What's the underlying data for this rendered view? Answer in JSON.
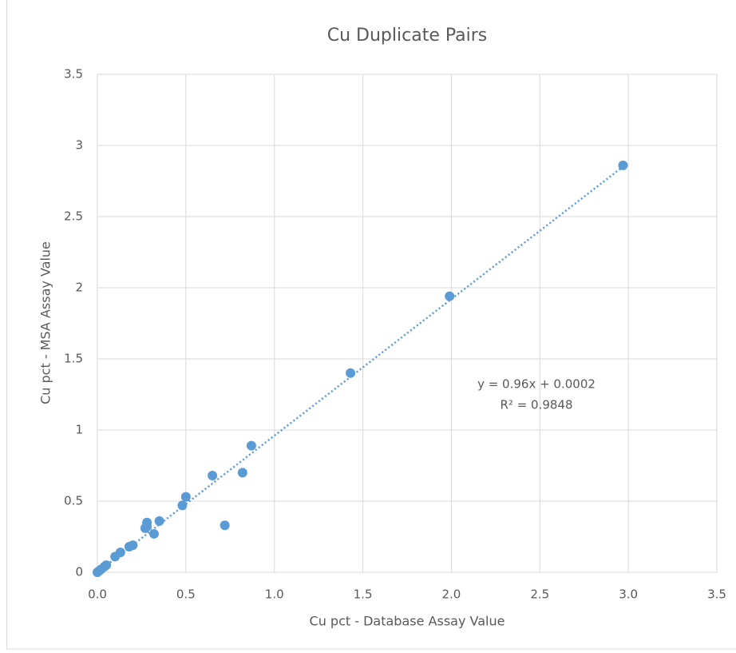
{
  "chart_data": {
    "type": "scatter",
    "title": "Cu Duplicate Pairs",
    "xlabel": "Cu pct - Database Assay Value",
    "ylabel": "Cu pct - MSA Assay Value",
    "series": [
      {
        "name": "Cu",
        "color": "#5b9bd5",
        "x": [
          2.97,
          1.99,
          1.43,
          0.87,
          0.82,
          0.65,
          0.72,
          0.5,
          0.48,
          0.35,
          0.32,
          0.28,
          0.27,
          0.28,
          0.2,
          0.18,
          0.13,
          0.1,
          0.05,
          0.04,
          0.02,
          0.01,
          0.0
        ],
        "values": [
          2.86,
          1.94,
          1.4,
          0.89,
          0.7,
          0.68,
          0.33,
          0.53,
          0.47,
          0.36,
          0.27,
          0.35,
          0.31,
          0.32,
          0.19,
          0.18,
          0.14,
          0.11,
          0.05,
          0.04,
          0.02,
          0.01,
          0.0
        ]
      }
    ],
    "trendline": {
      "equation": "y = 0.96x + 0.0002",
      "r_squared": "R² = 0.9848",
      "slope": 0.96,
      "intercept": 0.0002
    },
    "xlim": [
      0,
      3.5
    ],
    "xticks": [
      {
        "value": 0,
        "label": "0.0"
      },
      {
        "value": 0.5,
        "label": "0.5"
      },
      {
        "value": 1,
        "label": "1.0"
      },
      {
        "value": 1.5,
        "label": "1.5"
      },
      {
        "value": 2,
        "label": "2.0"
      },
      {
        "value": 2.5,
        "label": "2.5"
      },
      {
        "value": 3,
        "label": "3.0"
      },
      {
        "value": 3.5,
        "label": "3.5"
      }
    ],
    "ylim": [
      0,
      3.5
    ],
    "yticks": [
      0,
      0.5,
      1,
      1.5,
      2,
      2.5,
      3,
      3.5
    ],
    "grid": true
  }
}
